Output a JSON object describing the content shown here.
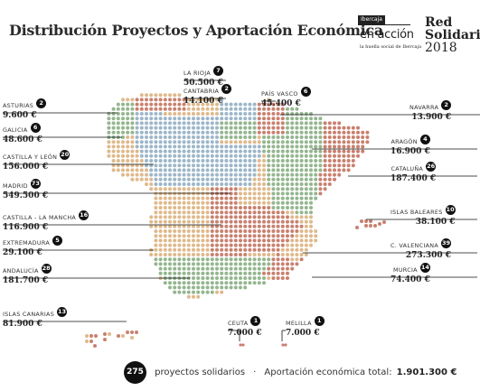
{
  "title": "Distribución Proyectos y Aportación Económica",
  "logo": {
    "badge": "Ibercaja",
    "name": "en·acción",
    "tagline": "la huella social de Ibercaja"
  },
  "brand": {
    "line1": "Red",
    "line2": "Solidaria",
    "line3": "2018"
  },
  "colors": {
    "red": "#c9806f",
    "blue": "#9cb6c9",
    "green": "#93b68e",
    "orange": "#dfb98b",
    "dark": "#111111"
  },
  "regions": [
    {
      "name": "LA RIOJA",
      "count": "7",
      "amount": "50.500 €"
    },
    {
      "name": "CANTABRIA",
      "count": "2",
      "amount": "14.100 €"
    },
    {
      "name": "PAÍS VASCO",
      "count": "6",
      "amount": "45.400 €"
    },
    {
      "name": "ASTURIAS",
      "count": "2",
      "amount": "9.600 €"
    },
    {
      "name": "NAVARRA",
      "count": "2",
      "amount": "13.900 €"
    },
    {
      "name": "GALICIA",
      "count": "6",
      "amount": "48.600 €"
    },
    {
      "name": "ARAGÓN",
      "count": "4",
      "amount": "16.900 €"
    },
    {
      "name": "CASTILLA Y LEÓN",
      "count": "20",
      "amount": "156.000 €"
    },
    {
      "name": "CATALUÑA",
      "count": "26",
      "amount": "187.400 €"
    },
    {
      "name": "MADRID",
      "count": "73",
      "amount": "549.500 €"
    },
    {
      "name": "ISLAS BALEARES",
      "count": "10",
      "amount": "38.100 €"
    },
    {
      "name": "CASTILLA - LA MANCHA",
      "count": "16",
      "amount": "116.900 €"
    },
    {
      "name": "EXTREMADURA",
      "count": "5",
      "amount": "29.100 €"
    },
    {
      "name": "C. VALENCIANA",
      "count": "39",
      "amount": "273.300 €"
    },
    {
      "name": "ANDALUCÍA",
      "count": "28",
      "amount": "181.700 €"
    },
    {
      "name": "MURCIA",
      "count": "14",
      "amount": "74.400 €"
    },
    {
      "name": "ISLAS CANARIAS",
      "count": "13",
      "amount": "81.900 €"
    },
    {
      "name": "CEUTA",
      "count": "1",
      "amount": "7.000 €"
    },
    {
      "name": "MELILLA",
      "count": "1",
      "amount": "7.000 €"
    }
  ],
  "footer": {
    "total_projects": "275",
    "projects_label": "proyectos solidarios",
    "separator": "·",
    "total_label": "Aportación económica total:",
    "total_amount": "1.901.300 €"
  }
}
